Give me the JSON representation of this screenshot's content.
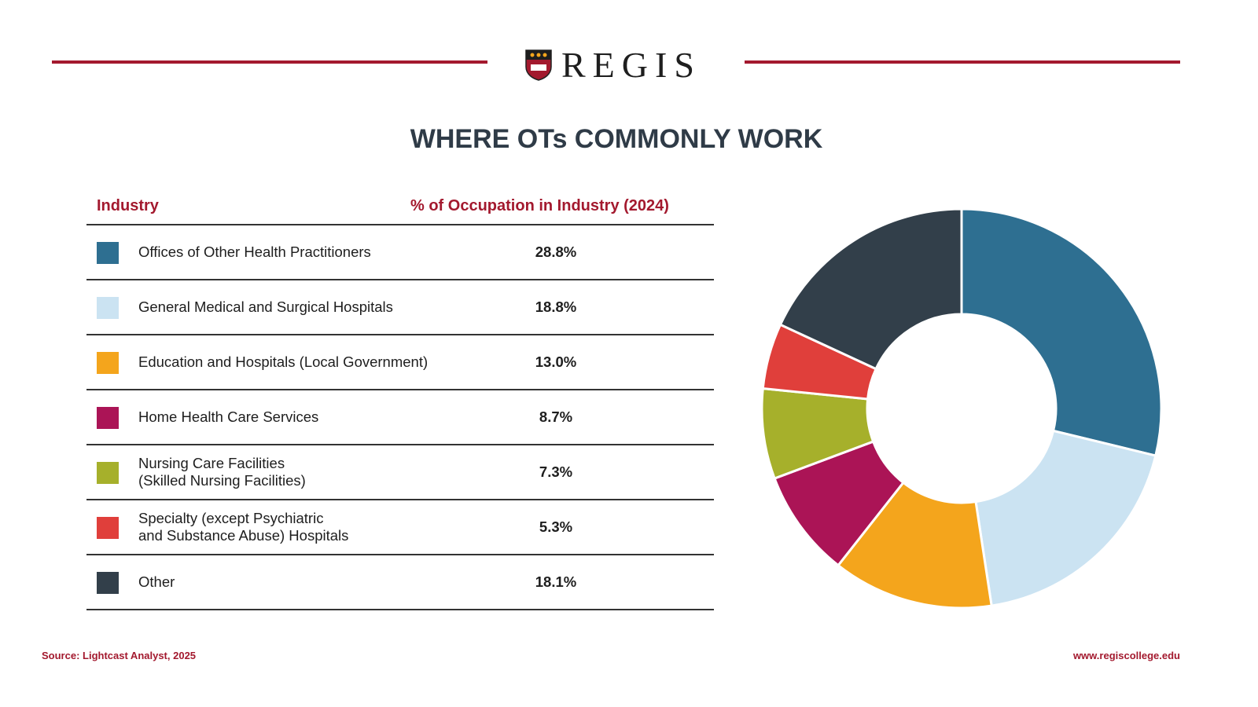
{
  "header": {
    "logo_text": "REGIS"
  },
  "title": "WHERE OTs COMMONLY WORK",
  "chart_data": {
    "type": "pie",
    "variant": "donut",
    "title": "WHERE OTs COMMONLY WORK",
    "column_headers": [
      "Industry",
      "% of Occupation in Industry (2024)"
    ],
    "categories": [
      "Offices of Other Health Practitioners",
      "General Medical and Surgical Hospitals",
      "Education and Hospitals (Local Government)",
      "Home Health Care Services",
      "Nursing Care Facilities\n(Skilled Nursing Facilities)",
      "Specialty (except Psychiatric\nand Substance Abuse) Hospitals",
      "Other"
    ],
    "values": [
      28.8,
      18.8,
      13.0,
      8.7,
      7.3,
      5.3,
      18.1
    ],
    "labels": [
      "28.8%",
      "18.8%",
      "13.0%",
      "8.7%",
      "7.3%",
      "5.3%",
      "18.1%"
    ],
    "colors": [
      "#2e6f91",
      "#cbe3f2",
      "#f4a51c",
      "#ab1456",
      "#a6b02b",
      "#e03f3b",
      "#323f4a"
    ],
    "legend": "left-table"
  },
  "footer": {
    "source": "Source: Lightcast Analyst, 2025",
    "url": "www.regiscollege.edu"
  }
}
